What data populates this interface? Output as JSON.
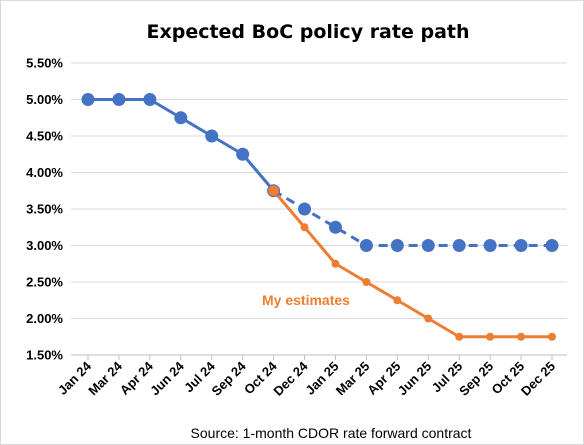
{
  "colors": {
    "blue": "#4472C4",
    "orange": "#ED7D31",
    "gridline": "#d9d9d9",
    "axis": "#bfbfbf"
  },
  "chart_data": {
    "type": "line",
    "title": "Expected BoC policy rate path",
    "source": "Source: 1-month CDOR rate forward contract",
    "annotation": "My estimates",
    "ylim": [
      1.5,
      5.5
    ],
    "yticks": [
      "1.50%",
      "2.00%",
      "2.50%",
      "3.00%",
      "3.50%",
      "4.00%",
      "4.50%",
      "5.00%",
      "5.50%"
    ],
    "categories": [
      "Jan 24",
      "Mar 24",
      "Apr 24",
      "Jun 24",
      "Jul 24",
      "Sep 24",
      "Oct 24",
      "Dec 24",
      "Jan 25",
      "Mar 25",
      "Apr 25",
      "Jun 25",
      "Jul 25",
      "Sep 25",
      "Oct 25",
      "Dec 25"
    ],
    "grid": true,
    "series": [
      {
        "color": "blue",
        "marker": "large-circle",
        "solid_until_index": 6,
        "values": [
          5.0,
          5.0,
          5.0,
          4.75,
          4.5,
          4.25,
          3.75,
          3.5,
          3.25,
          3.0,
          3.0,
          3.0,
          3.0,
          3.0,
          3.0,
          3.0
        ]
      },
      {
        "name": "My estimates",
        "color": "orange",
        "marker": "small-circle",
        "values": [
          null,
          null,
          null,
          null,
          null,
          null,
          3.75,
          3.25,
          2.75,
          2.5,
          2.25,
          2.0,
          1.75,
          1.75,
          1.75,
          1.75
        ]
      }
    ]
  }
}
